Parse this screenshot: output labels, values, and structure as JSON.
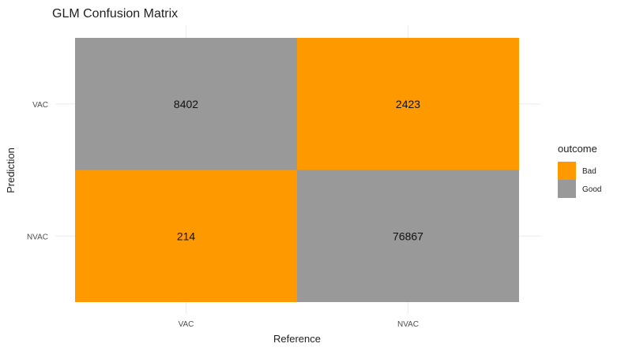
{
  "chart_data": {
    "type": "heatmap",
    "title": "GLM Confusion Matrix",
    "xlabel": "Reference",
    "ylabel": "Prediction",
    "x_categories": [
      "VAC",
      "NVAC"
    ],
    "y_categories": [
      "VAC",
      "NVAC"
    ],
    "cells": [
      {
        "reference": "VAC",
        "prediction": "VAC",
        "count": 8402,
        "outcome": "Good"
      },
      {
        "reference": "NVAC",
        "prediction": "VAC",
        "count": 2423,
        "outcome": "Bad"
      },
      {
        "reference": "VAC",
        "prediction": "NVAC",
        "count": 214,
        "outcome": "Bad"
      },
      {
        "reference": "NVAC",
        "prediction": "NVAC",
        "count": 76867,
        "outcome": "Good"
      }
    ],
    "legend": {
      "title": "outcome",
      "placement": "right",
      "items": [
        {
          "label": "Bad",
          "color": "#FF9900"
        },
        {
          "label": "Good",
          "color": "#999999"
        }
      ]
    },
    "grid": true
  }
}
